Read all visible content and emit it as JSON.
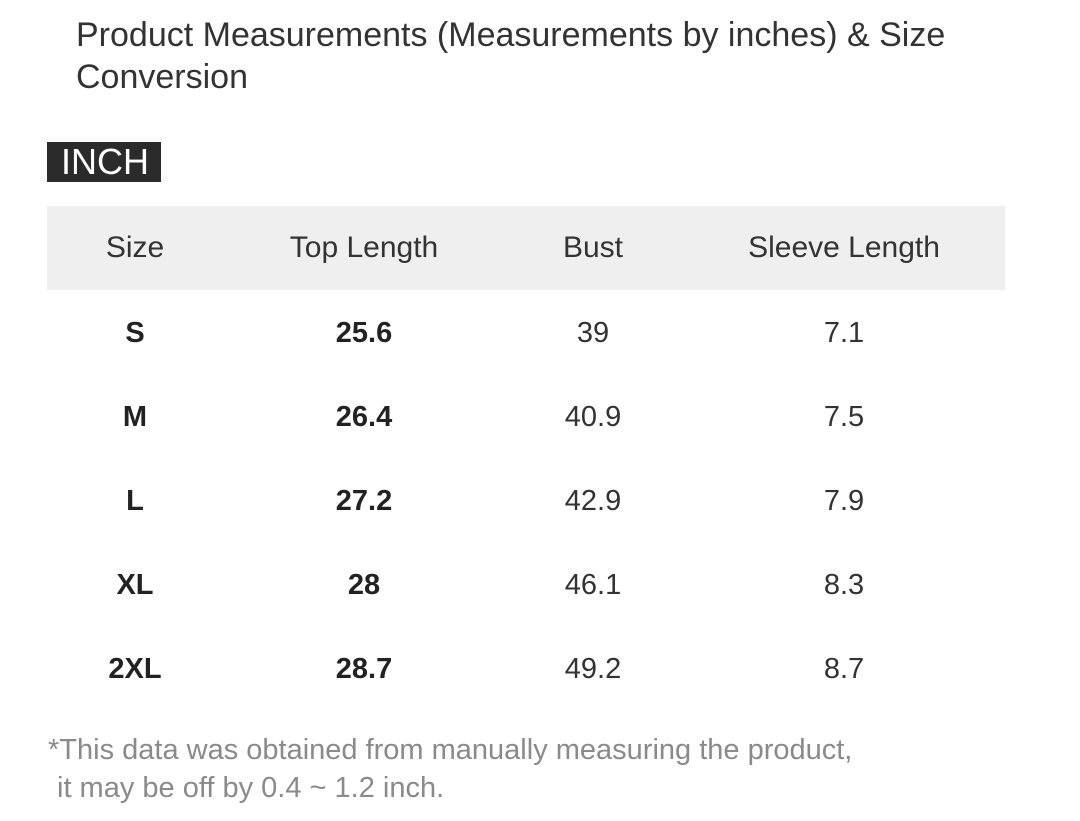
{
  "header": {
    "title": "Product Measurements (Measurements by inches) & Size Conversion",
    "unit_tag": "INCH"
  },
  "table": {
    "columns": [
      "Size",
      "Top Length",
      "Bust",
      "Sleeve Length"
    ],
    "rows": [
      [
        "S",
        "25.6",
        "39",
        "7.1"
      ],
      [
        "M",
        "26.4",
        "40.9",
        "7.5"
      ],
      [
        "L",
        "27.2",
        "42.9",
        "7.9"
      ],
      [
        "XL",
        "28",
        "46.1",
        "8.3"
      ],
      [
        "2XL",
        "28.7",
        "49.2",
        "8.7"
      ]
    ]
  },
  "footnote": [
    "*This data was obtained from manually measuring the product,",
    "it may be off by 0.4 ~ 1.2 inch."
  ]
}
